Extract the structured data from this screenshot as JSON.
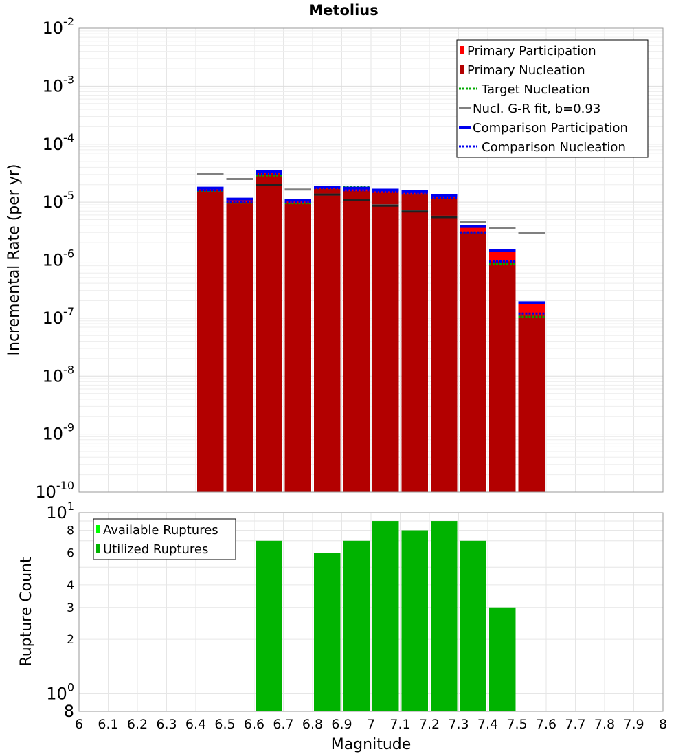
{
  "chart_data": [
    {
      "type": "bar",
      "title": "Metolius",
      "xlabel": "",
      "ylabel": "Incremental Rate (per yr)",
      "yscale": "log",
      "xlim": [
        6,
        8
      ],
      "ylim": [
        1e-10,
        0.01
      ],
      "y_ticks": [
        {
          "value": 1e-10,
          "base": "10",
          "exp": "-10"
        },
        {
          "value": 1e-09,
          "base": "10",
          "exp": "-9"
        },
        {
          "value": 1e-08,
          "base": "10",
          "exp": "-8"
        },
        {
          "value": 1e-07,
          "base": "10",
          "exp": "-7"
        },
        {
          "value": 1e-06,
          "base": "10",
          "exp": "-6"
        },
        {
          "value": 1e-05,
          "base": "10",
          "exp": "-5"
        },
        {
          "value": 0.0001,
          "base": "10",
          "exp": "-4"
        },
        {
          "value": 0.001,
          "base": "10",
          "exp": "-3"
        },
        {
          "value": 0.01,
          "base": "10",
          "exp": "-2"
        }
      ],
      "grid": true,
      "legend_position": "top-right",
      "bin_width": 0.1,
      "x": [
        6.45,
        6.55,
        6.65,
        6.75,
        6.85,
        6.95,
        7.05,
        7.15,
        7.25,
        7.35,
        7.45,
        7.55
      ],
      "series": [
        {
          "name": "Primary Participation",
          "style": "bar",
          "color": "#ff0000",
          "values": [
            1.7e-05,
            1.1e-05,
            3.3e-05,
            1.05e-05,
            1.8e-05,
            1.7e-05,
            1.6e-05,
            1.5e-05,
            1.3e-05,
            3.7e-06,
            1.4e-06,
            1.8e-07
          ]
        },
        {
          "name": "Primary Nucleation",
          "style": "bar",
          "color": "#b30000",
          "values": [
            1.6e-05,
            1e-05,
            3.1e-05,
            9.8e-06,
            1.7e-05,
            1.55e-05,
            1.45e-05,
            1.35e-05,
            1.2e-05,
            3e-06,
            9.5e-07,
            1.1e-07
          ]
        },
        {
          "name": "Target Nucleation",
          "style": "dotted",
          "color": "#00aa00",
          "values": [
            1.55e-05,
            9.8e-06,
            2.9e-05,
            9.6e-06,
            1.75e-05,
            1.85e-05,
            1.6e-05,
            1.4e-05,
            1.2e-05,
            3e-06,
            8.7e-07,
            1.05e-07
          ]
        },
        {
          "name": "Nucl. G-R fit, b=0.93",
          "style": "solid",
          "color": "#808080",
          "values": [
            3.1e-05,
            2.5e-05,
            2e-05,
            1.65e-05,
            1.35e-05,
            1.1e-05,
            8.8e-06,
            7e-06,
            5.6e-06,
            4.5e-06,
            3.6e-06,
            2.9e-06
          ]
        },
        {
          "name": "Comparison Participation",
          "style": "solid",
          "color": "#0000ee",
          "values": [
            1.75e-05,
            1.13e-05,
            3.35e-05,
            1.08e-05,
            1.82e-05,
            1.75e-05,
            1.62e-05,
            1.52e-05,
            1.32e-05,
            3.8e-06,
            1.45e-06,
            1.85e-07
          ]
        },
        {
          "name": "Comparison Nucleation",
          "style": "dotted",
          "color": "#0000ee",
          "values": [
            1.6e-05,
            1e-05,
            3.1e-05,
            1e-05,
            1.75e-05,
            1.6e-05,
            1.5e-05,
            1.4e-05,
            1.2e-05,
            3e-06,
            9.5e-07,
            1.2e-07
          ]
        },
        {
          "name": "",
          "style": "solid",
          "color": "#202020",
          "values": [
            null,
            null,
            2e-05,
            null,
            1.35e-05,
            1.1e-05,
            8.7e-06,
            6.9e-06,
            5.5e-06,
            null,
            null,
            null
          ]
        }
      ]
    },
    {
      "type": "bar",
      "title": "",
      "xlabel": "Magnitude",
      "ylabel": "Rupture Count",
      "yscale": "log",
      "xlim": [
        6,
        8
      ],
      "ylim": [
        0.8,
        10
      ],
      "x_ticks": [
        "6",
        "6.1",
        "6.2",
        "6.3",
        "6.4",
        "6.5",
        "6.6",
        "6.7",
        "6.8",
        "6.9",
        "7",
        "7.1",
        "7.2",
        "7.3",
        "7.4",
        "7.5",
        "7.6",
        "7.7",
        "7.8",
        "7.9",
        "8"
      ],
      "y_ticks": [
        {
          "value": 0.8,
          "base": "8",
          "exp": ""
        },
        {
          "value": 1,
          "base": "10",
          "exp": "0"
        },
        {
          "value": 2,
          "base": "2",
          "exp": ""
        },
        {
          "value": 3,
          "base": "3",
          "exp": ""
        },
        {
          "value": 4,
          "base": "4",
          "exp": ""
        },
        {
          "value": 6,
          "base": "6",
          "exp": ""
        },
        {
          "value": 8,
          "base": "8",
          "exp": ""
        },
        {
          "value": 10,
          "base": "10",
          "exp": "1"
        }
      ],
      "grid": true,
      "legend_position": "top-left",
      "bin_width": 0.1,
      "x": [
        6.65,
        6.85,
        6.95,
        7.05,
        7.15,
        7.25,
        7.35,
        7.45
      ],
      "series": [
        {
          "name": "Available Ruptures",
          "style": "bar",
          "color": "#00ff00",
          "values": [
            7,
            6,
            7,
            9,
            8,
            9,
            7,
            3
          ]
        },
        {
          "name": "Utilized Ruptures",
          "style": "bar",
          "color": "#00b300",
          "values": [
            7,
            6,
            7,
            9,
            8,
            9,
            7,
            3
          ]
        }
      ]
    }
  ]
}
